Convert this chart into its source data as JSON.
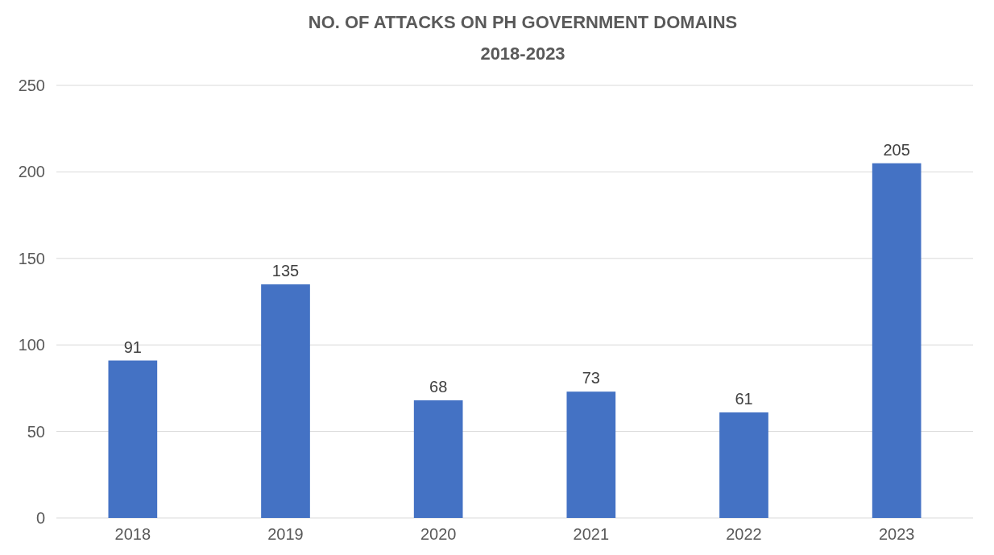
{
  "chart_data": {
    "type": "bar",
    "title": "NO. OF ATTACKS ON PH GOVERNMENT DOMAINS",
    "subtitle": "2018-2023",
    "categories": [
      "2018",
      "2019",
      "2020",
      "2021",
      "2022",
      "2023"
    ],
    "values": [
      91,
      135,
      68,
      73,
      61,
      205
    ],
    "color": "#4472c4",
    "ylim": [
      0,
      250
    ],
    "yticks": [
      0,
      50,
      100,
      150,
      200,
      250
    ],
    "grid": "y",
    "data_labels": true
  }
}
